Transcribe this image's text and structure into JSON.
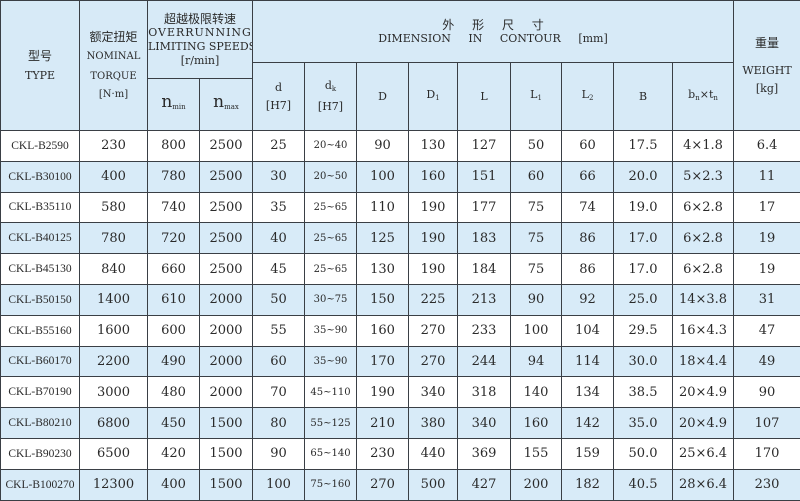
{
  "header": {
    "type_cn": "型号",
    "type_en": "TYPE",
    "torque_cn": "额定扭矩",
    "torque_en1": "NOMINAL",
    "torque_en2": "TORQUE",
    "torque_unit": "[N·m]",
    "speed_cn": "超越极限转速",
    "speed_en1": "OVERRUNNING",
    "speed_en2": "LIMITING SPEEDS",
    "speed_unit": "[r/min]",
    "nmin_base": "n",
    "nmin_sub": "min",
    "nmax_base": "n",
    "nmax_sub": "max",
    "dim_cn": [
      "外",
      "形",
      "尺",
      "寸"
    ],
    "dim_en": [
      "DIMENSION",
      "IN",
      "CONTOUR",
      "[mm]"
    ],
    "weight_cn": "重量",
    "weight_en": "WEIGHT",
    "weight_unit": "[kg]",
    "d": "d",
    "d_unit": "[H7]",
    "dk_base": "d",
    "dk_sub": "k",
    "dk_unit": "[H7]",
    "D": "D",
    "D1_base": "D",
    "D1_sub": "1",
    "L": "L",
    "L1_base": "L",
    "L1_sub": "1",
    "L2_base": "L",
    "L2_sub": "2",
    "B": "B",
    "bt_b": "b",
    "bt_bsub": "n",
    "bt_x": "×",
    "bt_t": "t",
    "bt_tsub": "n"
  },
  "rows": [
    [
      "CKL-B2590",
      "230",
      "800",
      "2500",
      "25",
      "20~40",
      "90",
      "130",
      "127",
      "50",
      "60",
      "17.5",
      "4×1.8",
      "6.4"
    ],
    [
      "CKL-B30100",
      "400",
      "780",
      "2500",
      "30",
      "20~50",
      "100",
      "160",
      "151",
      "60",
      "66",
      "20.0",
      "5×2.3",
      "11"
    ],
    [
      "CKL-B35110",
      "580",
      "740",
      "2500",
      "35",
      "25~65",
      "110",
      "190",
      "177",
      "75",
      "74",
      "19.0",
      "6×2.8",
      "17"
    ],
    [
      "CKL-B40125",
      "780",
      "720",
      "2500",
      "40",
      "25~65",
      "125",
      "190",
      "183",
      "75",
      "86",
      "17.0",
      "6×2.8",
      "19"
    ],
    [
      "CKL-B45130",
      "840",
      "660",
      "2500",
      "45",
      "25~65",
      "130",
      "190",
      "184",
      "75",
      "86",
      "17.0",
      "6×2.8",
      "19"
    ],
    [
      "CKL-B50150",
      "1400",
      "610",
      "2000",
      "50",
      "30~75",
      "150",
      "225",
      "213",
      "90",
      "92",
      "25.0",
      "14×3.8",
      "31"
    ],
    [
      "CKL-B55160",
      "1600",
      "600",
      "2000",
      "55",
      "35~90",
      "160",
      "270",
      "233",
      "100",
      "104",
      "29.5",
      "16×4.3",
      "47"
    ],
    [
      "CKL-B60170",
      "2200",
      "490",
      "2000",
      "60",
      "35~90",
      "170",
      "270",
      "244",
      "94",
      "114",
      "30.0",
      "18×4.4",
      "49"
    ],
    [
      "CKL-B70190",
      "3000",
      "480",
      "2000",
      "70",
      "45~110",
      "190",
      "340",
      "318",
      "140",
      "134",
      "38.5",
      "20×4.9",
      "90"
    ],
    [
      "CKL-B80210",
      "6800",
      "450",
      "1500",
      "80",
      "55~125",
      "210",
      "380",
      "340",
      "160",
      "142",
      "35.0",
      "20×4.9",
      "107"
    ],
    [
      "CKL-B90230",
      "6500",
      "420",
      "1500",
      "90",
      "65~140",
      "230",
      "440",
      "369",
      "155",
      "159",
      "50.0",
      "25×6.4",
      "170"
    ],
    [
      "CKL-B100270",
      "12300",
      "400",
      "1500",
      "100",
      "75~160",
      "270",
      "500",
      "427",
      "200",
      "182",
      "40.5",
      "28×6.4",
      "230"
    ]
  ],
  "colors": {
    "header_bg": "#d7eaf7",
    "alt_row_bg": "#d8ebf8",
    "border": "#3a3f45"
  }
}
